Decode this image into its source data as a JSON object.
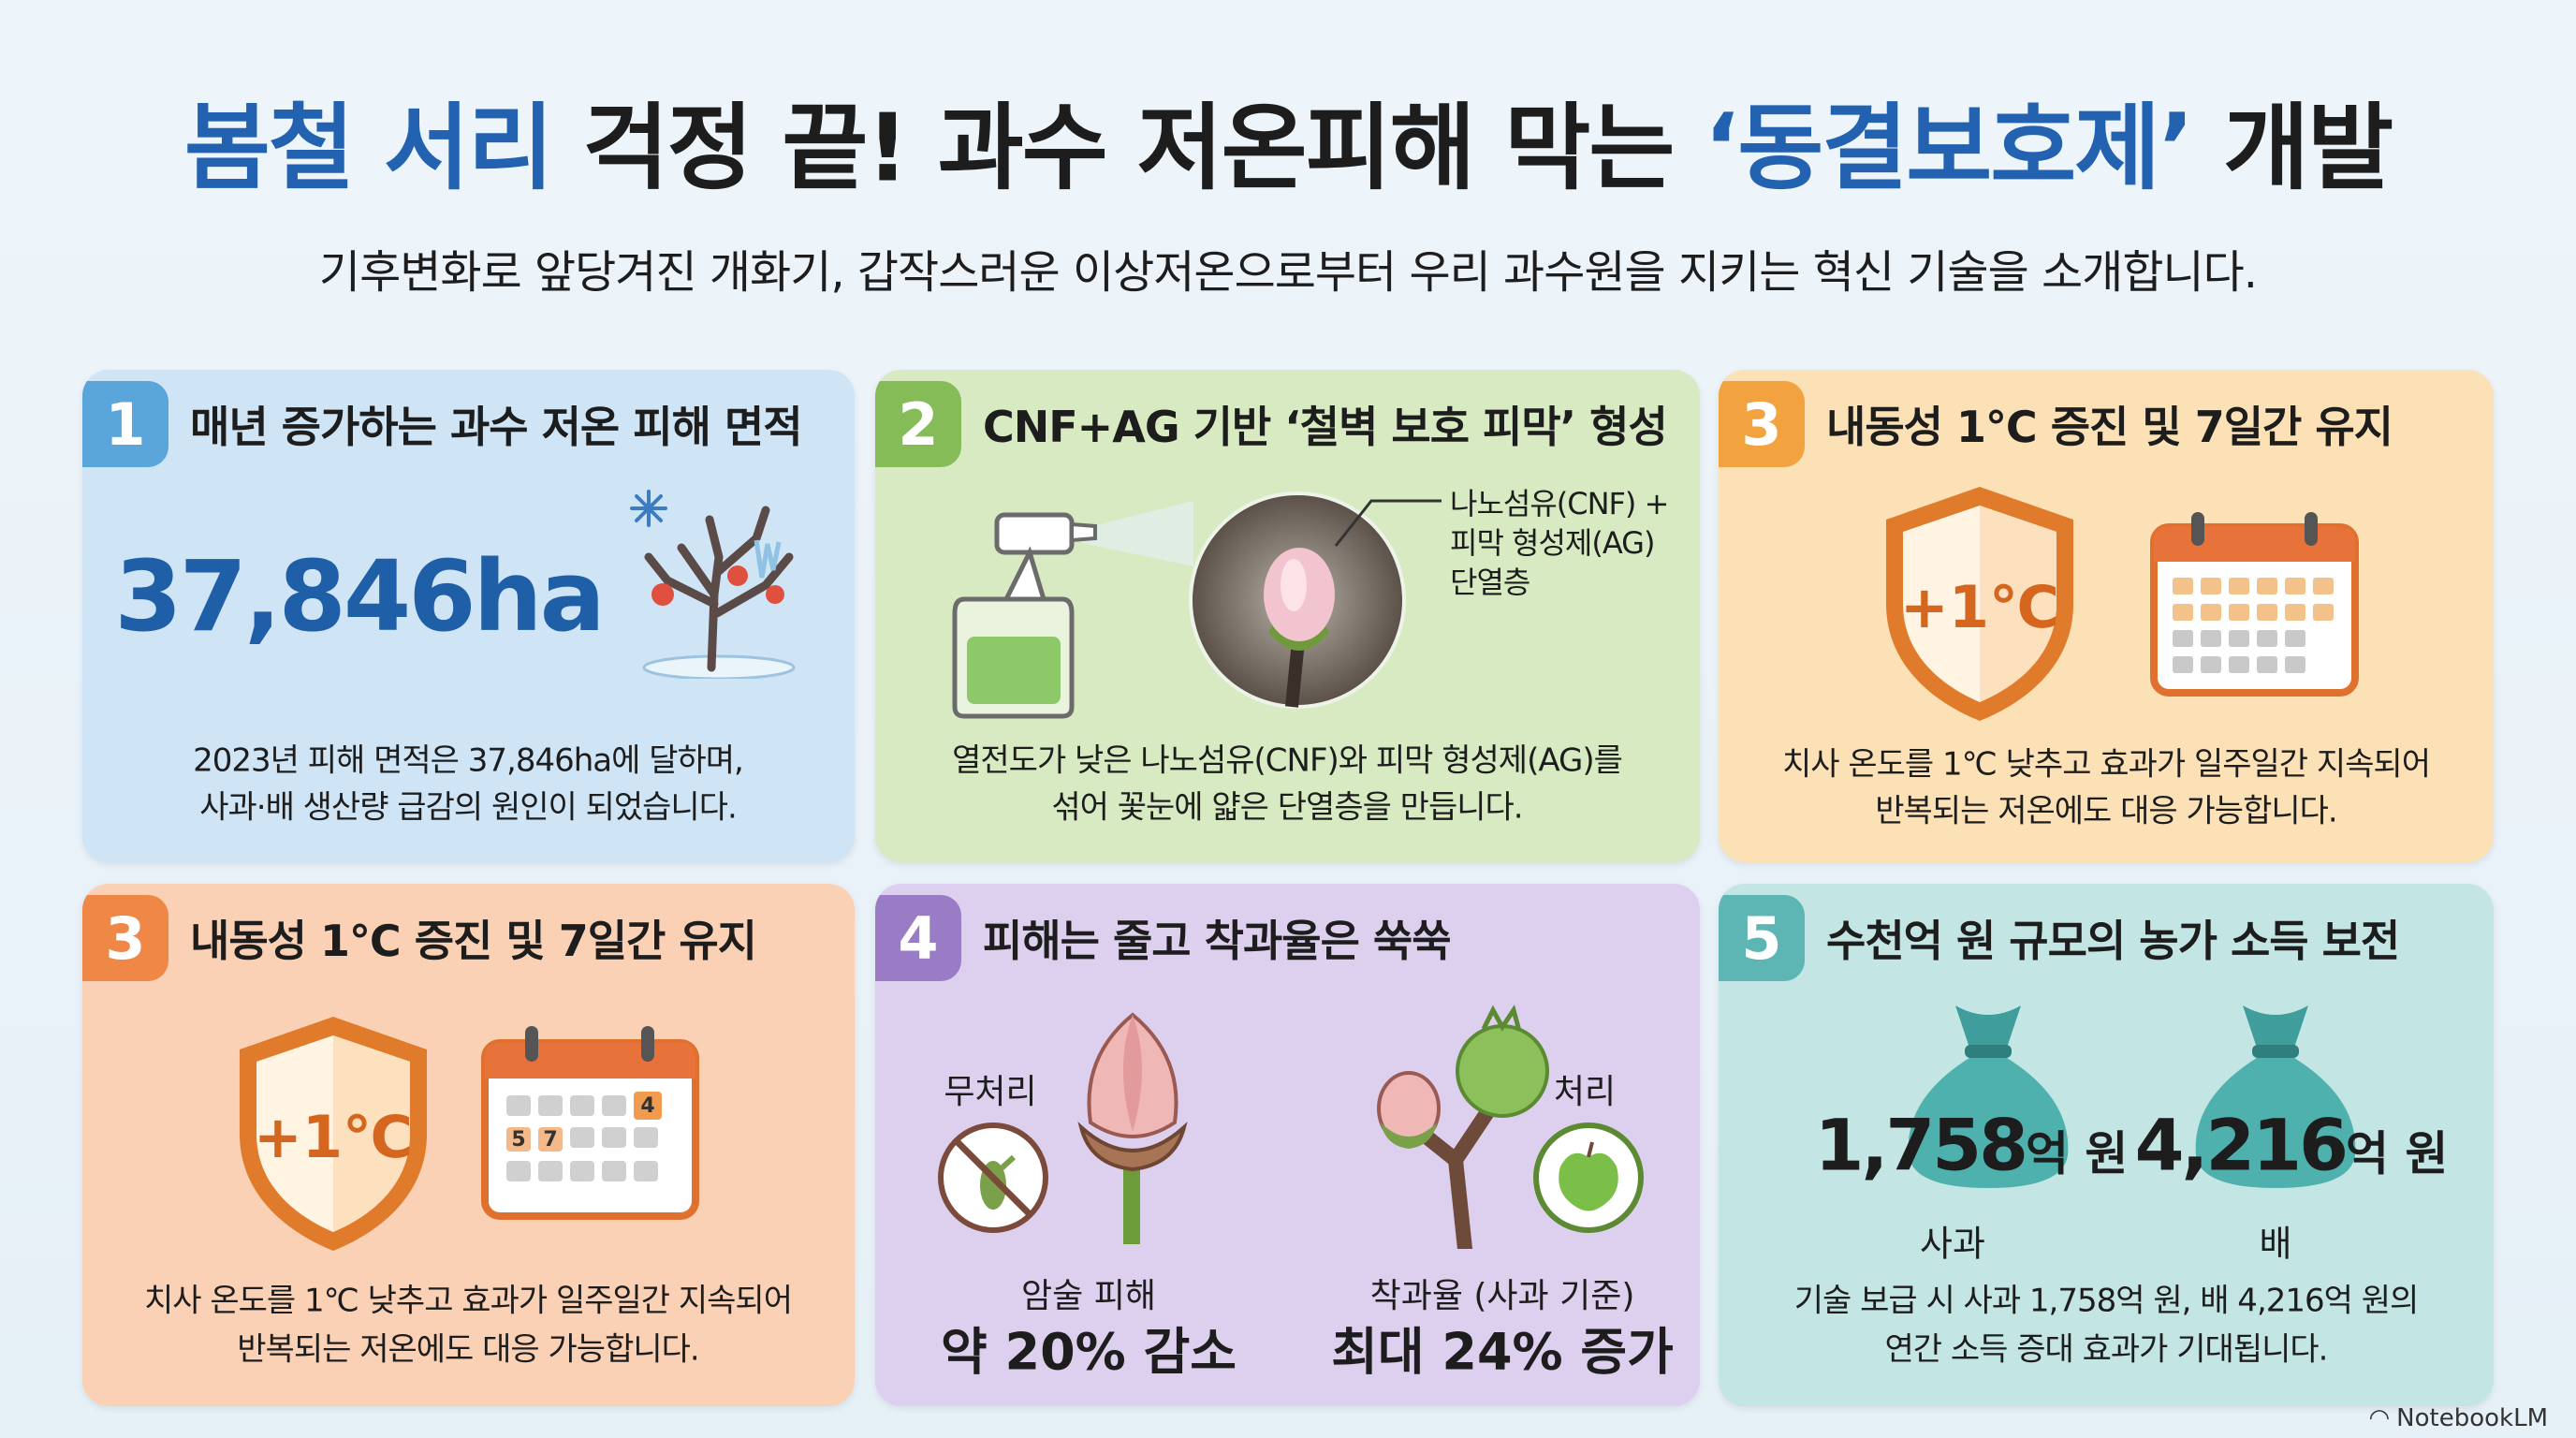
{
  "header": {
    "title": {
      "blue_1": "봄철 서리",
      "dark_1": "걱정 끝! 과수 저온피해 막는",
      "blue_2": "‘동결보호제’",
      "dark_2": "개발"
    },
    "subtitle": "기후변화로 앞당겨진 개화기, 갑작스러운 이상저온으로부터 우리 과수원을 지키는 혁신 기술을 소개합니다."
  },
  "cards": [
    {
      "number": "1",
      "title": "매년 증가하는 과수 저온 피해 면적",
      "stat": "37,846ha",
      "body": [
        "2023년 피해 면적은 37,846ha에 달하며,",
        "사과·배 생산량 급감의 원인이 되었습니다."
      ]
    },
    {
      "number": "2",
      "title": "CNF+AG 기반 ‘철벽 보호 피막’ 형성",
      "callout": [
        "나노섬유(CNF) +",
        "피막 형성제(AG)",
        "단열층"
      ],
      "body": [
        "열전도가 낮은 나노섬유(CNF)와 피막 형성제(AG)를",
        "섞어 꽃눈에 얇은 단열층을 만듭니다."
      ]
    },
    {
      "number": "3",
      "title": "내동성 1℃ 증진 및 7일간 유지",
      "shield_label": "+1℃",
      "body": [
        "치사 온도를 1℃ 낮추고 효과가 일주일간 지속되어",
        "반복되는 저온에도 대응 가능합니다."
      ]
    },
    {
      "number": "3",
      "title": "내동성 1℃ 증진 및 7일간 유지",
      "shield_label": "+1℃",
      "calendar_days": [
        "5",
        "7",
        "4"
      ],
      "body": [
        "치사 온도를 1℃ 낮추고 효과가 일주일간 지속되어",
        "반복되는 저온에도 대응 가능합니다."
      ]
    },
    {
      "number": "4",
      "title": "피해는 줄고 착과율은 쑥쑥",
      "untreated": "무처리",
      "treated": "처리",
      "left_caption": "암술 피해",
      "left_result": "약 20% 감소",
      "right_caption": "착과율 (사과 기준)",
      "right_result": "최대 24% 증가"
    },
    {
      "number": "5",
      "title": "수천억 원 규모의 농가 소득 보전",
      "amounts": [
        {
          "value": "1,758",
          "unit": "억 원",
          "label": "사과"
        },
        {
          "value": "4,216",
          "unit": "억 원",
          "label": "배"
        }
      ],
      "body": [
        "기술 보급 시 사과 1,758억 원, 배 4,216억 원의",
        "연간 소득 증대 효과가 기대됩니다."
      ]
    }
  ],
  "footer": {
    "brand": "NotebookLM"
  }
}
